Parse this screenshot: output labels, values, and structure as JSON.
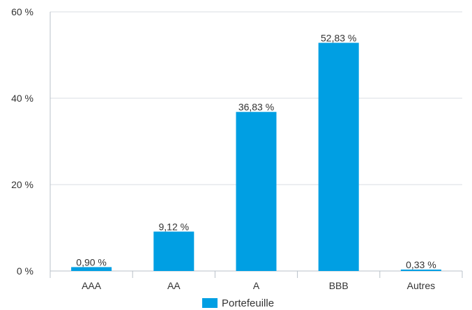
{
  "chart_data": {
    "type": "bar",
    "categories": [
      "AAA",
      "AA",
      "A",
      "BBB",
      "Autres"
    ],
    "series": [
      {
        "name": "Portefeuille",
        "values": [
          0.9,
          9.12,
          36.83,
          52.83,
          0.33
        ],
        "data_labels": [
          "0,90 %",
          "9,12 %",
          "36,83 %",
          "52,83 %",
          "0,33 %"
        ]
      }
    ],
    "y_ticks": [
      0,
      20,
      40,
      60
    ],
    "y_tick_labels": [
      "0 %",
      "20 %",
      "40 %",
      "60 %"
    ],
    "ylim": [
      0,
      60
    ],
    "grid": true,
    "legend_position": "bottom-center",
    "colors": {
      "bar": "#009fe3",
      "grid": "#d9dde3",
      "axis": "#b8c0c8",
      "text": "#333333"
    }
  }
}
